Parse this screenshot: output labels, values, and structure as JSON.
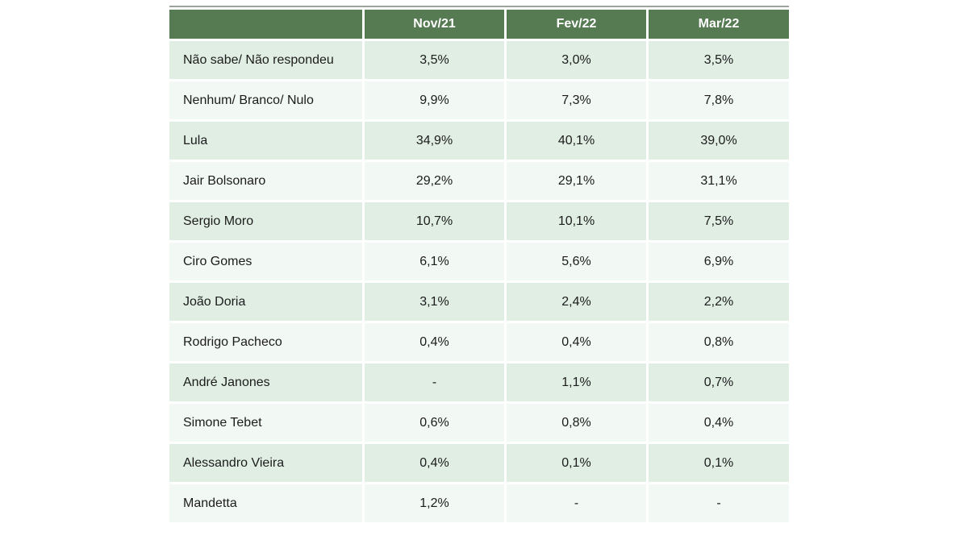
{
  "colors": {
    "header_bg": "#567a51",
    "header_text": "#ffffff",
    "row_odd_bg": "#e0eee4",
    "row_even_bg": "#f2f8f3",
    "body_text": "#1c1c1c",
    "top_border": "#9aa49a"
  },
  "chart_data": {
    "type": "table",
    "title": "",
    "corner_label": "",
    "columns": [
      "Nov/21",
      "Fev/22",
      "Mar/22"
    ],
    "rows": [
      {
        "label": "Não sabe/ Não respondeu",
        "values": [
          "3,5%",
          "3,0%",
          "3,5%"
        ]
      },
      {
        "label": "Nenhum/ Branco/ Nulo",
        "values": [
          "9,9%",
          "7,3%",
          "7,8%"
        ]
      },
      {
        "label": "Lula",
        "values": [
          "34,9%",
          "40,1%",
          "39,0%"
        ]
      },
      {
        "label": "Jair Bolsonaro",
        "values": [
          "29,2%",
          "29,1%",
          "31,1%"
        ]
      },
      {
        "label": "Sergio Moro",
        "values": [
          "10,7%",
          "10,1%",
          "7,5%"
        ]
      },
      {
        "label": "Ciro Gomes",
        "values": [
          "6,1%",
          "5,6%",
          "6,9%"
        ]
      },
      {
        "label": "João Doria",
        "values": [
          "3,1%",
          "2,4%",
          "2,2%"
        ]
      },
      {
        "label": "Rodrigo Pacheco",
        "values": [
          "0,4%",
          "0,4%",
          "0,8%"
        ]
      },
      {
        "label": "André Janones",
        "values": [
          "-",
          "1,1%",
          "0,7%"
        ]
      },
      {
        "label": "Simone Tebet",
        "values": [
          "0,6%",
          "0,8%",
          "0,4%"
        ]
      },
      {
        "label": "Alessandro Vieira",
        "values": [
          "0,4%",
          "0,1%",
          "0,1%"
        ]
      },
      {
        "label": "Mandetta",
        "values": [
          "1,2%",
          "-",
          "-"
        ]
      }
    ]
  }
}
